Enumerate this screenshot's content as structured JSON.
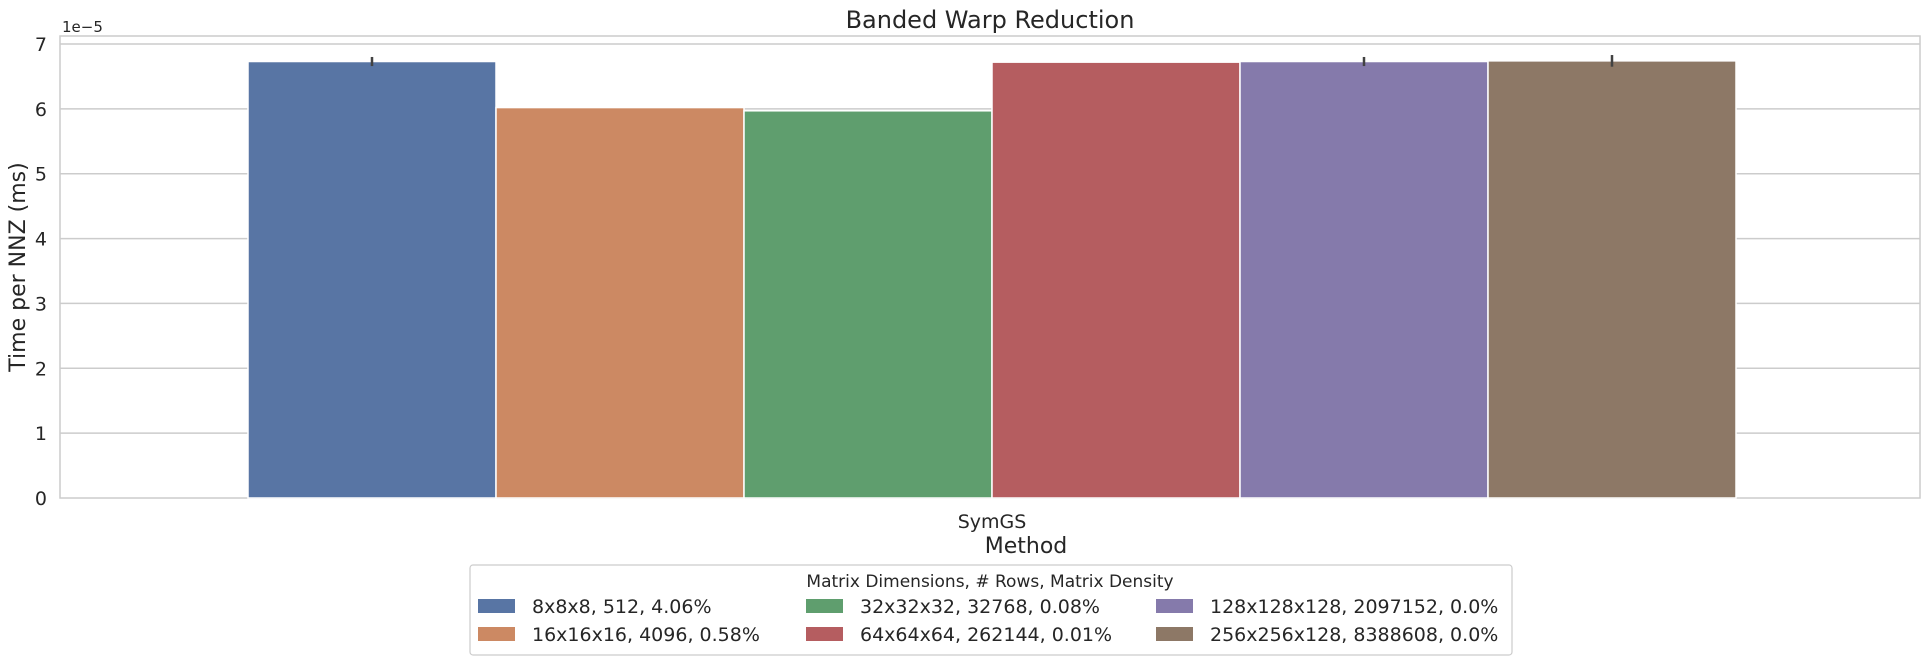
{
  "chart_data": {
    "type": "bar",
    "title": "Banded Warp Reduction",
    "xlabel": "Method",
    "ylabel": "Time per NNZ (ms)",
    "y_scale_label": "1e−5",
    "categories": [
      "SymGS"
    ],
    "yticks": [
      "0",
      "1",
      "2",
      "3",
      "4",
      "5",
      "6",
      "7"
    ],
    "ylim": [
      0,
      7.0
    ],
    "y_unit_multiplier": 1e-05,
    "grid": true,
    "legend": {
      "title": "Matrix Dimensions, # Rows, Matrix Density",
      "placement": "bottom-center",
      "columns": 3
    },
    "series": [
      {
        "name": "8x8x8, 512, 4.06%",
        "color": "#5875a4",
        "values": [
          6.73
        ],
        "error": [
          0.07
        ]
      },
      {
        "name": "16x16x16, 4096, 0.58%",
        "color": "#cc8963",
        "values": [
          6.02
        ],
        "error": [
          0.0
        ]
      },
      {
        "name": "32x32x32, 32768, 0.08%",
        "color": "#5f9e6e",
        "values": [
          5.97
        ],
        "error": [
          0.0
        ]
      },
      {
        "name": "64x64x64, 262144, 0.01%",
        "color": "#b55d60",
        "values": [
          6.72
        ],
        "error": [
          0.0
        ]
      },
      {
        "name": "128x128x128, 2097152, 0.0%",
        "color": "#857aab",
        "values": [
          6.73
        ],
        "error": [
          0.07
        ]
      },
      {
        "name": "256x256x128, 8388608, 0.0%",
        "color": "#8d7866",
        "values": [
          6.74
        ],
        "error": [
          0.09
        ]
      }
    ]
  }
}
